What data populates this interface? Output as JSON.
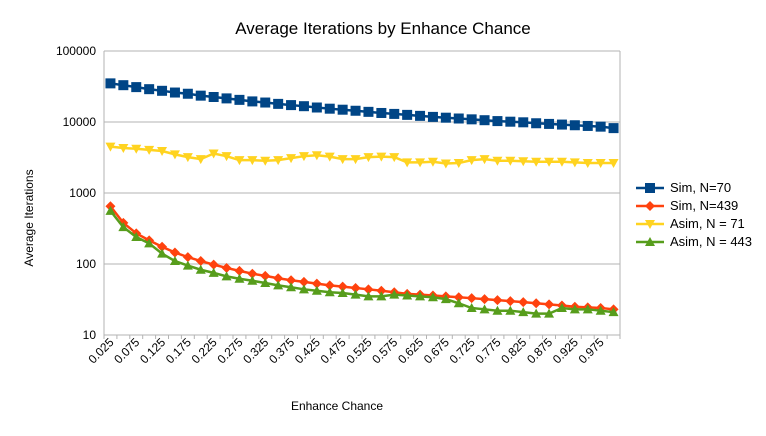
{
  "chart_data": {
    "type": "line",
    "title": "Average Iterations by Enhance Chance",
    "xlabel": "Enhance Chance",
    "ylabel": "Average Iterations",
    "yscale": "log",
    "ylim": [
      10,
      100000
    ],
    "yticks": [
      "100000",
      "10000",
      "1000",
      "100",
      "10"
    ],
    "grid": "horizontal",
    "legend_position": "right",
    "x": [
      0.025,
      0.05,
      0.075,
      0.1,
      0.125,
      0.15,
      0.175,
      0.2,
      0.225,
      0.25,
      0.275,
      0.3,
      0.325,
      0.35,
      0.375,
      0.4,
      0.425,
      0.45,
      0.475,
      0.5,
      0.525,
      0.55,
      0.575,
      0.6,
      0.625,
      0.65,
      0.675,
      0.7,
      0.725,
      0.75,
      0.775,
      0.8,
      0.825,
      0.85,
      0.875,
      0.9,
      0.925,
      0.95,
      0.975,
      1.0
    ],
    "xtick_labels": [
      "0.025",
      "0.075",
      "0.125",
      "0.175",
      "0.225",
      "0.275",
      "0.325",
      "0.375",
      "0.425",
      "0.475",
      "0.525",
      "0.575",
      "0.625",
      "0.675",
      "0.725",
      "0.775",
      "0.825",
      "0.875",
      "0.925",
      "0.975"
    ],
    "series": [
      {
        "name": "Sim, N=70",
        "color": "#004586",
        "marker": "square",
        "values": [
          35000,
          33000,
          31000,
          29000,
          27500,
          26000,
          25000,
          23500,
          22500,
          21500,
          20500,
          19500,
          18800,
          18000,
          17300,
          16700,
          16000,
          15400,
          14900,
          14400,
          13900,
          13400,
          13000,
          12600,
          12200,
          11800,
          11500,
          11200,
          10900,
          10600,
          10300,
          10100,
          9900,
          9600,
          9400,
          9200,
          9000,
          8800,
          8600,
          8200
        ]
      },
      {
        "name": "Sim, N=439",
        "color": "#ff420e",
        "marker": "diamond",
        "values": [
          650,
          380,
          270,
          215,
          175,
          145,
          125,
          110,
          98,
          88,
          80,
          73,
          68,
          63,
          59,
          56,
          53,
          50,
          48,
          46,
          44,
          42,
          40,
          38,
          37,
          36,
          35,
          34,
          33,
          32,
          31,
          30,
          29,
          28,
          27,
          26,
          25,
          24.5,
          24,
          23
        ]
      },
      {
        "name": "Asim, N = 71",
        "color": "#ffd320",
        "marker": "triangle-down",
        "values": [
          4500,
          4300,
          4200,
          4050,
          3900,
          3500,
          3200,
          3000,
          3600,
          3300,
          2900,
          2900,
          2850,
          2900,
          3100,
          3300,
          3400,
          3250,
          3000,
          3000,
          3200,
          3250,
          3200,
          2700,
          2700,
          2750,
          2600,
          2650,
          2900,
          3000,
          2850,
          2850,
          2800,
          2750,
          2750,
          2750,
          2700,
          2650,
          2650,
          2650
        ]
      },
      {
        "name": "Asim, N = 443",
        "color": "#579d1c",
        "marker": "triangle-up",
        "values": [
          560,
          330,
          240,
          195,
          140,
          110,
          95,
          83,
          75,
          67,
          62,
          58,
          54,
          50,
          47,
          44,
          42,
          40,
          39,
          37,
          35,
          35,
          37,
          36,
          35,
          34,
          32,
          28,
          24,
          23,
          22,
          22,
          21,
          20,
          20,
          24,
          23,
          23,
          22,
          21
        ]
      }
    ]
  }
}
